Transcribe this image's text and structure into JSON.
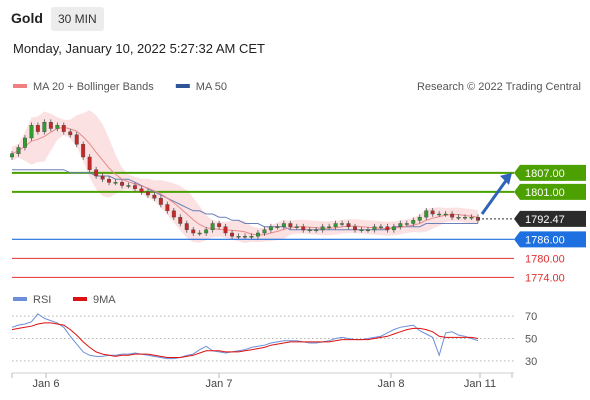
{
  "header": {
    "title": "Gold",
    "timeframe": "30 MIN",
    "timestamp": "Monday, January 10, 2022 5:27:32 AM CET"
  },
  "legend": {
    "items": [
      {
        "label": "MA 20 + Bollinger Bands",
        "color": "#f08080"
      },
      {
        "label": "MA 50",
        "color": "#2e5597"
      }
    ],
    "copyright": "Research © 2022 Trading Central"
  },
  "rsi_legend": {
    "items": [
      {
        "label": "RSI",
        "color": "#6b8fd8"
      },
      {
        "label": "9MA",
        "color": "#dd1111"
      }
    ]
  },
  "chart_data": [
    {
      "type": "line",
      "name": "price",
      "x_ticks": [
        "Jan 6",
        "Jan 7",
        "Jan 8",
        "Jan 11"
      ],
      "ylim": [
        1770,
        1830
      ],
      "current_price": 1792.47,
      "levels": [
        {
          "value": 1807.0,
          "label": "1807.00",
          "role": "resistance",
          "color": "#4ca000"
        },
        {
          "value": 1801.0,
          "label": "1801.00",
          "role": "resistance",
          "color": "#4ca000"
        },
        {
          "value": 1786.0,
          "label": "1786.00",
          "role": "pivot",
          "color": "#1e6fe0"
        },
        {
          "value": 1780.0,
          "label": "1780.00",
          "role": "support",
          "color": "#e03030"
        },
        {
          "value": 1774.0,
          "label": "1774.00",
          "role": "support",
          "color": "#e03030"
        }
      ],
      "close": [
        1813,
        1815,
        1818,
        1822,
        1820,
        1823,
        1821,
        1822,
        1820,
        1819,
        1816,
        1812,
        1808,
        1806,
        1805,
        1804,
        1804,
        1803,
        1803,
        1802,
        1801,
        1800,
        1799,
        1797,
        1795,
        1793,
        1791,
        1789,
        1788,
        1788,
        1789,
        1791,
        1790,
        1788,
        1787,
        1787,
        1787,
        1787,
        1788,
        1789,
        1790,
        1790,
        1791,
        1790,
        1790,
        1789,
        1789,
        1789,
        1790,
        1790,
        1791,
        1791,
        1790,
        1789,
        1789,
        1789,
        1790,
        1790,
        1789,
        1790,
        1791,
        1791,
        1792,
        1793,
        1795,
        1794,
        1794,
        1794,
        1793,
        1793,
        1793,
        1793,
        1792
      ],
      "ma50": [
        1808,
        1808,
        1808,
        1808,
        1808,
        1808,
        1808,
        1808,
        1808,
        1807,
        1807,
        1807,
        1807,
        1806,
        1806,
        1806,
        1805,
        1805,
        1805,
        1804,
        1803,
        1802,
        1801,
        1800,
        1799,
        1798,
        1797,
        1796,
        1795,
        1795,
        1794,
        1794,
        1793,
        1793,
        1792,
        1792,
        1791,
        1791,
        1791,
        1790,
        1790,
        1790,
        1790,
        1789,
        1789,
        1789,
        1789,
        1789,
        1789,
        1789,
        1789,
        1789,
        1789,
        1789,
        1789,
        1789,
        1789,
        1789,
        1789,
        1790,
        1790,
        1790,
        1790,
        1790,
        1791,
        1791,
        1791,
        1791,
        1791,
        1791,
        1791,
        1791,
        1791
      ],
      "arrow": {
        "from": 1794,
        "to": 1807
      }
    },
    {
      "type": "line",
      "name": "rsi",
      "ylim": [
        20,
        80
      ],
      "y_ticks": [
        70,
        50,
        30
      ],
      "rsi": [
        60,
        62,
        63,
        65,
        72,
        68,
        66,
        64,
        60,
        52,
        45,
        38,
        35,
        34,
        34,
        35,
        35,
        36,
        36,
        37,
        36,
        35,
        34,
        33,
        32,
        32,
        33,
        35,
        36,
        40,
        43,
        39,
        38,
        37,
        38,
        39,
        40,
        42,
        43,
        44,
        46,
        47,
        48,
        48,
        48,
        47,
        46,
        46,
        47,
        48,
        50,
        51,
        50,
        49,
        49,
        50,
        51,
        52,
        55,
        58,
        60,
        61,
        62,
        57,
        54,
        51,
        35,
        55,
        56,
        53,
        52,
        50,
        48
      ],
      "ma9": [
        58,
        59,
        60,
        61,
        63,
        64,
        64,
        63,
        62,
        58,
        53,
        47,
        42,
        38,
        36,
        35,
        34,
        35,
        35,
        36,
        36,
        36,
        35,
        34,
        33,
        33,
        33,
        34,
        35,
        37,
        39,
        39,
        39,
        38,
        38,
        38,
        39,
        40,
        41,
        42,
        44,
        45,
        46,
        47,
        47,
        47,
        47,
        47,
        47,
        47,
        48,
        49,
        49,
        49,
        49,
        49,
        50,
        51,
        52,
        54,
        56,
        58,
        59,
        59,
        58,
        56,
        52,
        51,
        51,
        51,
        51,
        51,
        50
      ]
    }
  ]
}
